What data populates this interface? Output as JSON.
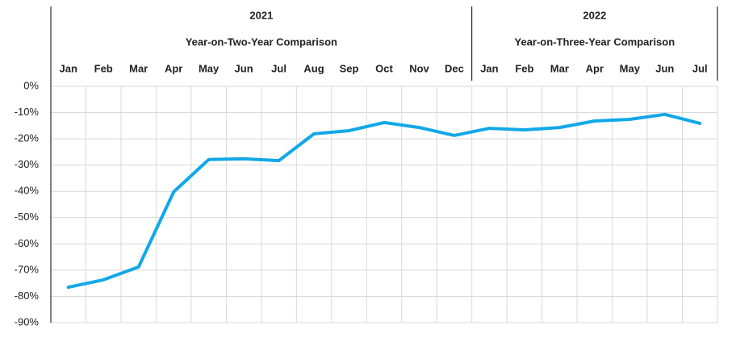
{
  "chart_data": {
    "type": "line",
    "groups": [
      {
        "label": "2021",
        "subtitle": "Year-on-Two-Year Comparison",
        "categories": [
          "Jan",
          "Feb",
          "Mar",
          "Apr",
          "May",
          "Jun",
          "Jul",
          "Aug",
          "Sep",
          "Oct",
          "Nov",
          "Dec"
        ]
      },
      {
        "label": "2022",
        "subtitle": "Year-on-Three-Year Comparison",
        "categories": [
          "Jan",
          "Feb",
          "Mar",
          "Apr",
          "May",
          "Jun",
          "Jul"
        ]
      }
    ],
    "series": [
      {
        "color": "#12a8e8",
        "values": [
          -76.5,
          -73.7,
          -68.8,
          -40.2,
          -27.9,
          -27.6,
          -28.3,
          -18.1,
          -16.9,
          -13.8,
          -15.7,
          -18.7,
          -16.0,
          -16.6,
          -15.7,
          -13.2,
          -12.6,
          -10.7,
          -14.1
        ]
      }
    ],
    "ylim": [
      -90,
      0
    ],
    "yticks": [
      {
        "value": 0,
        "label": "0%"
      },
      {
        "value": -10,
        "label": "-10%"
      },
      {
        "value": -20,
        "label": "-20%"
      },
      {
        "value": -30,
        "label": "-30%"
      },
      {
        "value": -40,
        "label": "-40%"
      },
      {
        "value": -50,
        "label": "-50%"
      },
      {
        "value": -60,
        "label": "-60%"
      },
      {
        "value": -70,
        "label": "-70%"
      },
      {
        "value": -80,
        "label": "-80%"
      },
      {
        "value": -90,
        "label": "-90%"
      }
    ],
    "grid": true
  }
}
